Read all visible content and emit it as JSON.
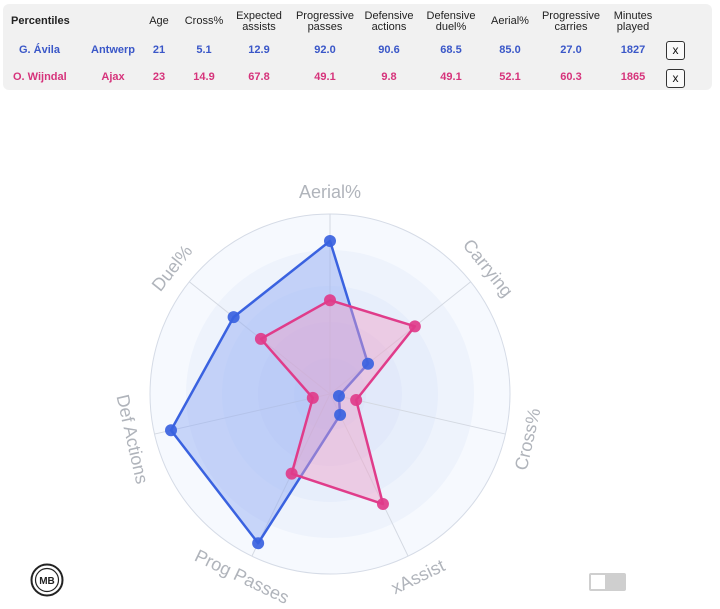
{
  "table": {
    "title": "Percentiles",
    "headers": {
      "age": "Age",
      "cross": "Cross%",
      "xa_1": "Expected",
      "xa_2": "assists",
      "pp_1": "Progressive",
      "pp_2": "passes",
      "da_1": "Defensive",
      "da_2": "actions",
      "dd_1": "Defensive",
      "dd_2": "duel%",
      "aerial": "Aerial%",
      "pc_1": "Progressive",
      "pc_2": "carries",
      "mp_1": "Minutes",
      "mp_2": "played"
    },
    "rows": [
      {
        "player": "G. Ávila",
        "team": "Antwerp",
        "age": "21",
        "cross": "5.1",
        "xa": "12.9",
        "pp": "92.0",
        "da": "90.6",
        "dd": "68.5",
        "aerial": "85.0",
        "pc": "27.0",
        "mp": "1827",
        "remove": "x",
        "color": "#3a57c8"
      },
      {
        "player": "O. Wijndal",
        "team": "Ajax",
        "age": "23",
        "cross": "14.9",
        "xa": "67.8",
        "pp": "49.1",
        "da": "9.8",
        "dd": "49.1",
        "aerial": "52.1",
        "pc": "60.3",
        "mp": "1865",
        "remove": "x",
        "color": "#d6337b"
      }
    ]
  },
  "chart_data": {
    "type": "radar",
    "axes": [
      "Aerial%",
      "Carrying",
      "Cross%",
      "xAssist",
      "Prog Passes",
      "Def Actions",
      "Duel%"
    ],
    "range": [
      0,
      100
    ],
    "series": [
      {
        "name": "G. Ávila",
        "values": [
          85.0,
          27.0,
          5.1,
          12.9,
          92.0,
          90.6,
          68.5
        ],
        "color": "#3a62e0",
        "fill": "#8fa8f3"
      },
      {
        "name": "O. Wijndal",
        "values": [
          52.1,
          60.3,
          14.9,
          67.8,
          49.1,
          9.8,
          49.1
        ],
        "color": "#e03c8a",
        "fill": "#f0a0c8"
      }
    ]
  },
  "logo": {
    "text": "MB"
  },
  "toggle": {
    "state": "off"
  }
}
